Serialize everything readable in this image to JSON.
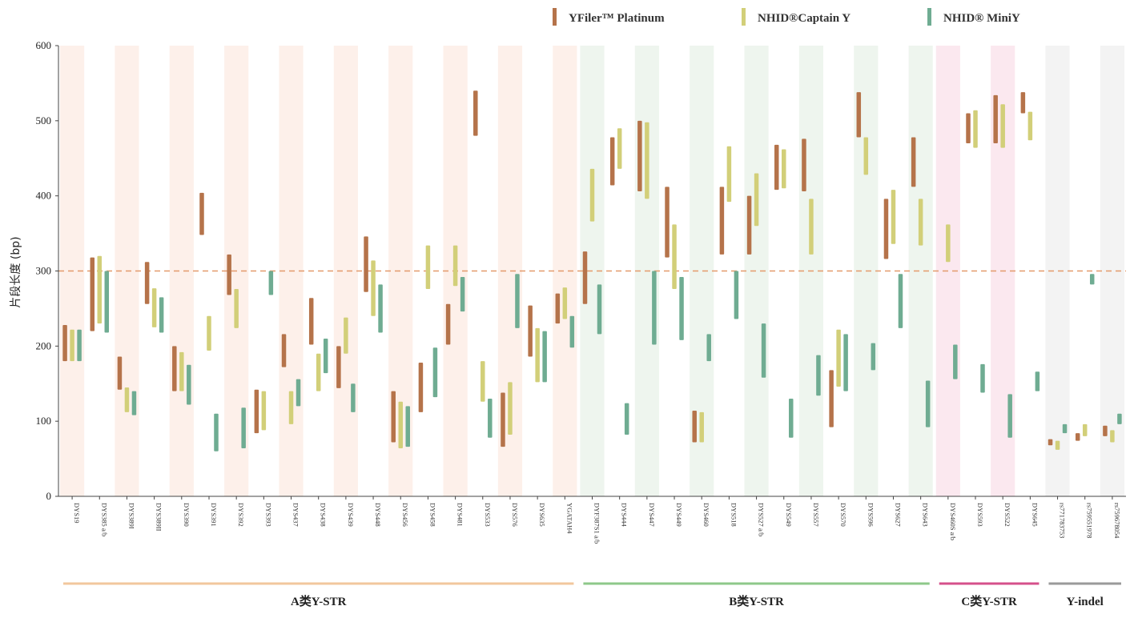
{
  "chart_data": {
    "type": "range-bar",
    "ylabel": "片段长度 (bp)",
    "ylim": [
      0,
      600
    ],
    "yticks": [
      0,
      100,
      200,
      300,
      400,
      500,
      600
    ],
    "reference_line": 300,
    "legend_position": "top-right",
    "series": [
      {
        "name": "YFiler™ Platinum",
        "color": "#b5734a"
      },
      {
        "name": "NHID®Captain Y",
        "color": "#d2cf79"
      },
      {
        "name": "NHID® MiniY",
        "color": "#6fac92"
      }
    ],
    "groups": [
      {
        "label": "A类Y-STR",
        "color": "#f2c79d",
        "bg": "#fdf0ea",
        "start": 0,
        "end": 18
      },
      {
        "label": "B类Y-STR",
        "color": "#8ec88a",
        "bg": "#eef5ee",
        "start": 19,
        "end": 31
      },
      {
        "label": "C类Y-STR",
        "color": "#d5508b",
        "bg": "#fbe8ef",
        "start": 32,
        "end": 35
      },
      {
        "label": "Y-indel",
        "color": "#9a9a9a",
        "bg": "#f3f3f3",
        "start": 36,
        "end": 38
      }
    ],
    "categories": [
      "DYS19",
      "DYS385 a/b",
      "DYS389I",
      "DYS389II",
      "DYS390",
      "DYS391",
      "DYS392",
      "DYS393",
      "DYS437",
      "DYS438",
      "DYS439",
      "DYS448",
      "DYS456",
      "DYS458",
      "DYS481",
      "DYS533",
      "DYS576",
      "DYS635",
      "YGATAH4",
      "DYF387S1 a/b",
      "DYS444",
      "DYS447",
      "DYS449",
      "DYS460",
      "DYS518",
      "DYS527 a/b",
      "DYS549",
      "DYS557",
      "DYS570",
      "DYS596",
      "DYS627",
      "DYS643",
      "DYS460S a/b",
      "DYS593",
      "DYS522",
      "DYS645",
      "rs771783753",
      "rs759551978",
      "rs759678054"
    ],
    "ranges": [
      {
        "category": "DYS19",
        "yfiler": [
          180,
          228
        ],
        "captain": [
          180,
          222
        ],
        "mini": [
          180,
          222
        ]
      },
      {
        "category": "DYS385 a/b",
        "yfiler": [
          220,
          318
        ],
        "captain": [
          230,
          320
        ],
        "mini": [
          218,
          300
        ]
      },
      {
        "category": "DYS389I",
        "yfiler": [
          142,
          186
        ],
        "captain": [
          112,
          145
        ],
        "mini": [
          108,
          140
        ]
      },
      {
        "category": "DYS389II",
        "yfiler": [
          256,
          312
        ],
        "captain": [
          225,
          277
        ],
        "mini": [
          218,
          265
        ]
      },
      {
        "category": "DYS390",
        "yfiler": [
          140,
          200
        ],
        "captain": [
          140,
          192
        ],
        "mini": [
          122,
          175
        ]
      },
      {
        "category": "DYS391",
        "yfiler": [
          348,
          404
        ],
        "captain": [
          194,
          240
        ],
        "mini": [
          60,
          110
        ]
      },
      {
        "category": "DYS392",
        "yfiler": [
          268,
          322
        ],
        "captain": [
          224,
          276
        ],
        "mini": [
          64,
          118
        ]
      },
      {
        "category": "DYS393",
        "yfiler": [
          84,
          142
        ],
        "captain": [
          88,
          140
        ],
        "mini": [
          268,
          300
        ]
      },
      {
        "category": "DYS437",
        "yfiler": [
          172,
          216
        ],
        "captain": [
          96,
          140
        ],
        "mini": [
          120,
          156
        ]
      },
      {
        "category": "DYS438",
        "yfiler": [
          202,
          264
        ],
        "captain": [
          140,
          190
        ],
        "mini": [
          164,
          210
        ]
      },
      {
        "category": "DYS439",
        "yfiler": [
          144,
          200
        ],
        "captain": [
          190,
          238
        ],
        "mini": [
          112,
          150
        ]
      },
      {
        "category": "DYS448",
        "yfiler": [
          272,
          346
        ],
        "captain": [
          240,
          314
        ],
        "mini": [
          218,
          282
        ]
      },
      {
        "category": "DYS456",
        "yfiler": [
          72,
          140
        ],
        "captain": [
          64,
          126
        ],
        "mini": [
          66,
          120
        ]
      },
      {
        "category": "DYS458",
        "yfiler": [
          112,
          178
        ],
        "captain": [
          276,
          334
        ],
        "mini": [
          132,
          198
        ]
      },
      {
        "category": "DYS481",
        "yfiler": [
          202,
          256
        ],
        "captain": [
          280,
          334
        ],
        "mini": [
          246,
          292
        ]
      },
      {
        "category": "DYS533",
        "yfiler": [
          480,
          540
        ],
        "captain": [
          126,
          180
        ],
        "mini": [
          78,
          130
        ]
      },
      {
        "category": "DYS576",
        "yfiler": [
          66,
          138
        ],
        "captain": [
          82,
          152
        ],
        "mini": [
          224,
          296
        ]
      },
      {
        "category": "DYS635",
        "yfiler": [
          186,
          254
        ],
        "captain": [
          152,
          224
        ],
        "mini": [
          152,
          220
        ]
      },
      {
        "category": "YGATAH4",
        "yfiler": [
          230,
          270
        ],
        "captain": [
          236,
          278
        ],
        "mini": [
          198,
          240
        ]
      },
      {
        "category": "DYF387S1 a/b",
        "yfiler": [
          256,
          326
        ],
        "captain": [
          366,
          436
        ],
        "mini": [
          216,
          282
        ]
      },
      {
        "category": "DYS444",
        "yfiler": [
          414,
          478
        ],
        "captain": [
          436,
          490
        ],
        "mini": [
          82,
          124
        ]
      },
      {
        "category": "DYS447",
        "yfiler": [
          406,
          500
        ],
        "captain": [
          396,
          498
        ],
        "mini": [
          202,
          300
        ]
      },
      {
        "category": "DYS449",
        "yfiler": [
          318,
          412
        ],
        "captain": [
          276,
          362
        ],
        "mini": [
          208,
          292
        ]
      },
      {
        "category": "DYS460",
        "yfiler": [
          72,
          114
        ],
        "captain": [
          72,
          112
        ],
        "mini": [
          180,
          216
        ]
      },
      {
        "category": "DYS518",
        "yfiler": [
          322,
          412
        ],
        "captain": [
          392,
          466
        ],
        "mini": [
          236,
          300
        ]
      },
      {
        "category": "DYS527 a/b",
        "yfiler": [
          322,
          400
        ],
        "captain": [
          360,
          430
        ],
        "mini": [
          158,
          230
        ]
      },
      {
        "category": "DYS549",
        "yfiler": [
          408,
          468
        ],
        "captain": [
          410,
          462
        ],
        "mini": [
          78,
          130
        ]
      },
      {
        "category": "DYS557",
        "yfiler": [
          406,
          476
        ],
        "captain": [
          322,
          396
        ],
        "mini": [
          134,
          188
        ]
      },
      {
        "category": "DYS570",
        "yfiler": [
          92,
          168
        ],
        "captain": [
          146,
          222
        ],
        "mini": [
          140,
          216
        ]
      },
      {
        "category": "DYS596",
        "yfiler": [
          478,
          538
        ],
        "captain": [
          428,
          478
        ],
        "mini": [
          168,
          204
        ]
      },
      {
        "category": "DYS627",
        "yfiler": [
          316,
          396
        ],
        "captain": [
          336,
          408
        ],
        "mini": [
          224,
          296
        ]
      },
      {
        "category": "DYS643",
        "yfiler": [
          412,
          478
        ],
        "captain": [
          334,
          396
        ],
        "mini": [
          92,
          154
        ]
      },
      {
        "category": "DYS460S a/b",
        "yfiler": null,
        "captain": [
          312,
          362
        ],
        "mini": [
          156,
          202
        ]
      },
      {
        "category": "DYS593",
        "yfiler": [
          470,
          510
        ],
        "captain": [
          464,
          514
        ],
        "mini": [
          138,
          176
        ]
      },
      {
        "category": "DYS522",
        "yfiler": [
          470,
          534
        ],
        "captain": [
          464,
          522
        ],
        "mini": [
          78,
          136
        ]
      },
      {
        "category": "DYS645",
        "yfiler": [
          510,
          538
        ],
        "captain": [
          474,
          512
        ],
        "mini": [
          140,
          166
        ]
      },
      {
        "category": "rs771783753",
        "yfiler": [
          68,
          76
        ],
        "captain": [
          62,
          74
        ],
        "mini": [
          84,
          96
        ]
      },
      {
        "category": "rs759551978",
        "yfiler": [
          74,
          84
        ],
        "captain": [
          80,
          96
        ],
        "mini": [
          282,
          296
        ]
      },
      {
        "category": "rs759678054",
        "yfiler": [
          80,
          94
        ],
        "captain": [
          72,
          88
        ],
        "mini": [
          96,
          110
        ]
      }
    ]
  }
}
